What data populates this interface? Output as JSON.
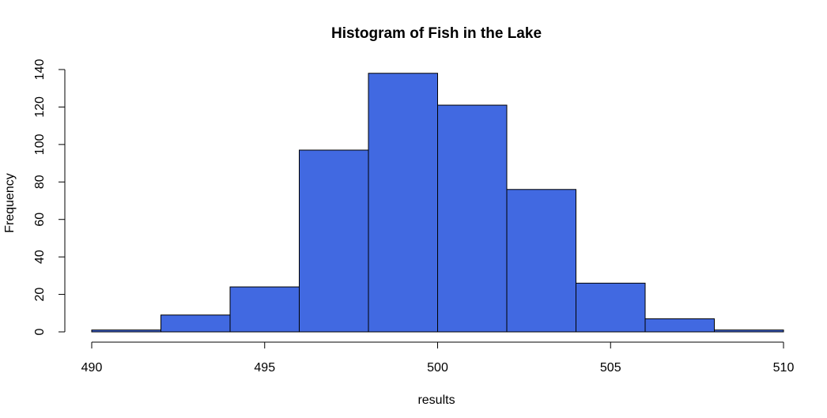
{
  "chart_data": {
    "type": "bar",
    "title": "Histogram of Fish in the Lake",
    "xlabel": "results",
    "ylabel": "Frequency",
    "bar_color": "#4169E1",
    "bin_edges": [
      490,
      492,
      494,
      496,
      498,
      500,
      502,
      504,
      506,
      508,
      510
    ],
    "values": [
      1,
      9,
      24,
      97,
      138,
      121,
      76,
      26,
      7,
      1
    ],
    "xlim": [
      490,
      510
    ],
    "ylim": [
      0,
      140
    ],
    "x_ticks": [
      490,
      495,
      500,
      505,
      510
    ],
    "y_ticks": [
      0,
      20,
      40,
      60,
      80,
      100,
      120,
      140
    ],
    "grid": false,
    "legend": "none"
  }
}
